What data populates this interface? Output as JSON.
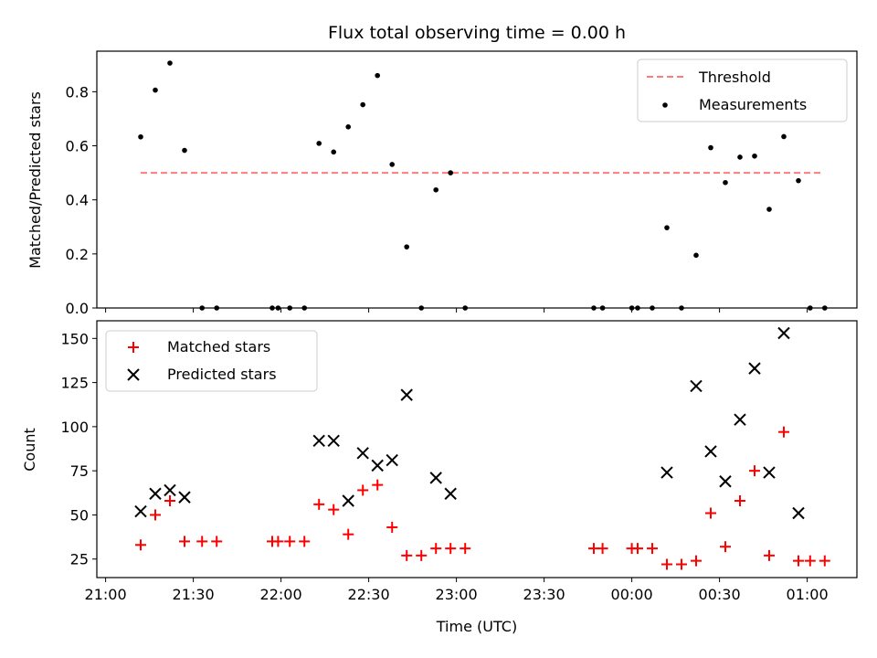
{
  "chart_data": [
    {
      "type": "scatter",
      "title": "Flux total observing time = 0.00 h",
      "xlabel": "",
      "ylabel": "Matched/Predicted stars",
      "ylim": [
        0,
        0.95
      ],
      "yticks": [
        "0.0",
        "0.2",
        "0.4",
        "0.6",
        "0.8"
      ],
      "x_range": [
        "20:57",
        "01:17"
      ],
      "legend_position": "top-right",
      "threshold": {
        "name": "Threshold",
        "value": 0.5,
        "x_start": "21:12",
        "x_end": "01:05",
        "color": "#ff7b7b"
      },
      "series": [
        {
          "name": "Measurements",
          "color": "#000000",
          "points": [
            [
              "21:12",
              0.633
            ],
            [
              "21:17",
              0.806
            ],
            [
              "21:22",
              0.906
            ],
            [
              "21:27",
              0.583
            ],
            [
              "21:33",
              0.0
            ],
            [
              "21:38",
              0.0
            ],
            [
              "21:57",
              0.0
            ],
            [
              "21:59",
              0.0
            ],
            [
              "22:03",
              0.0
            ],
            [
              "22:08",
              0.0
            ],
            [
              "22:13",
              0.609
            ],
            [
              "22:18",
              0.577
            ],
            [
              "22:23",
              0.67
            ],
            [
              "22:28",
              0.752
            ],
            [
              "22:33",
              0.86
            ],
            [
              "22:38",
              0.531
            ],
            [
              "22:43",
              0.226
            ],
            [
              "22:48",
              0.0
            ],
            [
              "22:53",
              0.437
            ],
            [
              "22:58",
              0.5
            ],
            [
              "23:03",
              0.0
            ],
            [
              "23:47",
              0.0
            ],
            [
              "23:50",
              0.0
            ],
            [
              "00:00",
              0.0
            ],
            [
              "00:02",
              0.0
            ],
            [
              "00:07",
              0.0
            ],
            [
              "00:12",
              0.297
            ],
            [
              "00:17",
              0.0
            ],
            [
              "00:22",
              0.195
            ],
            [
              "00:27",
              0.593
            ],
            [
              "00:32",
              0.464
            ],
            [
              "00:37",
              0.558
            ],
            [
              "00:42",
              0.562
            ],
            [
              "00:47",
              0.365
            ],
            [
              "00:52",
              0.634
            ],
            [
              "00:57",
              0.471
            ],
            [
              "01:01",
              0.0
            ],
            [
              "01:06",
              0.0
            ]
          ]
        }
      ]
    },
    {
      "type": "scatter",
      "xlabel": "Time (UTC)",
      "ylabel": "Count",
      "ylim": [
        14.5,
        160
      ],
      "yticks": [
        "25",
        "50",
        "75",
        "100",
        "125",
        "150"
      ],
      "xticks": [
        "21:00",
        "21:30",
        "22:00",
        "22:30",
        "23:00",
        "23:30",
        "00:00",
        "00:30",
        "01:00"
      ],
      "x_range": [
        "20:57",
        "01:17"
      ],
      "legend_position": "top-left",
      "series": [
        {
          "name": "Matched stars",
          "marker": "+",
          "color": "#ff0000",
          "points": [
            [
              "21:12",
              33
            ],
            [
              "21:17",
              50
            ],
            [
              "21:22",
              58
            ],
            [
              "21:27",
              35
            ],
            [
              "21:33",
              35
            ],
            [
              "21:38",
              35
            ],
            [
              "21:57",
              35
            ],
            [
              "21:59",
              35
            ],
            [
              "22:03",
              35
            ],
            [
              "22:08",
              35
            ],
            [
              "22:13",
              56
            ],
            [
              "22:18",
              53
            ],
            [
              "22:23",
              39
            ],
            [
              "22:28",
              64
            ],
            [
              "22:33",
              67
            ],
            [
              "22:38",
              43
            ],
            [
              "22:43",
              27
            ],
            [
              "22:48",
              27
            ],
            [
              "22:53",
              31
            ],
            [
              "22:58",
              31
            ],
            [
              "23:03",
              31
            ],
            [
              "23:47",
              31
            ],
            [
              "23:50",
              31
            ],
            [
              "00:00",
              31
            ],
            [
              "00:02",
              31
            ],
            [
              "00:07",
              31
            ],
            [
              "00:12",
              22
            ],
            [
              "00:17",
              22
            ],
            [
              "00:22",
              24
            ],
            [
              "00:27",
              51
            ],
            [
              "00:32",
              32
            ],
            [
              "00:37",
              58
            ],
            [
              "00:42",
              75
            ],
            [
              "00:47",
              27
            ],
            [
              "00:52",
              97
            ],
            [
              "00:57",
              24
            ],
            [
              "01:01",
              24
            ],
            [
              "01:06",
              24
            ]
          ]
        },
        {
          "name": "Predicted stars",
          "marker": "x",
          "color": "#000000",
          "points": [
            [
              "21:12",
              52
            ],
            [
              "21:17",
              62
            ],
            [
              "21:22",
              64
            ],
            [
              "21:27",
              60
            ],
            [
              "22:13",
              92
            ],
            [
              "22:18",
              92
            ],
            [
              "22:23",
              58
            ],
            [
              "22:28",
              85
            ],
            [
              "22:33",
              78
            ],
            [
              "22:38",
              81
            ],
            [
              "22:43",
              118
            ],
            [
              "22:53",
              71
            ],
            [
              "22:58",
              62
            ],
            [
              "00:12",
              74
            ],
            [
              "00:22",
              123
            ],
            [
              "00:27",
              86
            ],
            [
              "00:32",
              69
            ],
            [
              "00:37",
              104
            ],
            [
              "00:42",
              133
            ],
            [
              "00:47",
              74
            ],
            [
              "00:52",
              153
            ],
            [
              "00:57",
              51
            ]
          ]
        }
      ]
    }
  ]
}
